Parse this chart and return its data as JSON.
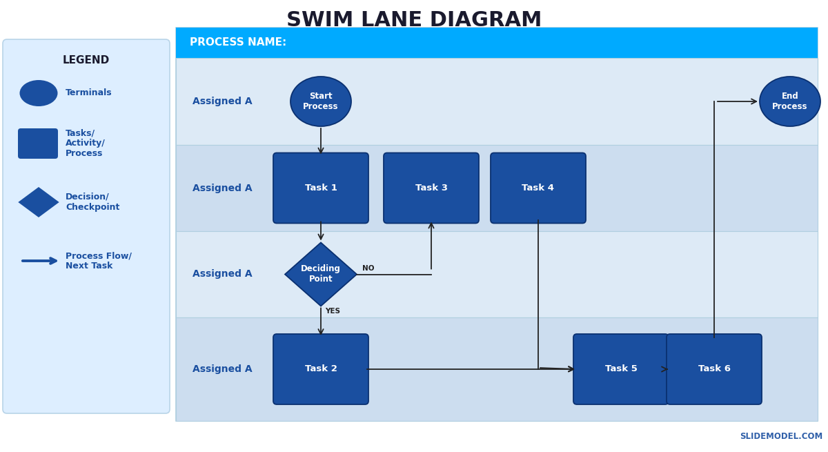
{
  "title": "SWIM LANE DIAGRAM",
  "title_color": "#1a1a2e",
  "title_fontsize": 22,
  "bg_color": "#ffffff",
  "legend_bg": "#ddeeff",
  "legend_border": "#b8d4e8",
  "legend_title": "LEGEND",
  "process_header": "PROCESS NAME:",
  "process_header_bg": "#00aaff",
  "process_header_color": "#ffffff",
  "swimlane_label": "Assigned A",
  "swimlane_label_color": "#1a4fa0",
  "node_color": "#1a4fa0",
  "node_text_color": "#ffffff",
  "arrow_color": "#222222",
  "watermark": "SLIDEMODEL.COM",
  "watermark_color": "#1a4fa0",
  "lane_colors": [
    "#ddeaf6",
    "#ccddef",
    "#ddeaf6",
    "#ccddef"
  ],
  "outer_bg": "#e8f3fb"
}
